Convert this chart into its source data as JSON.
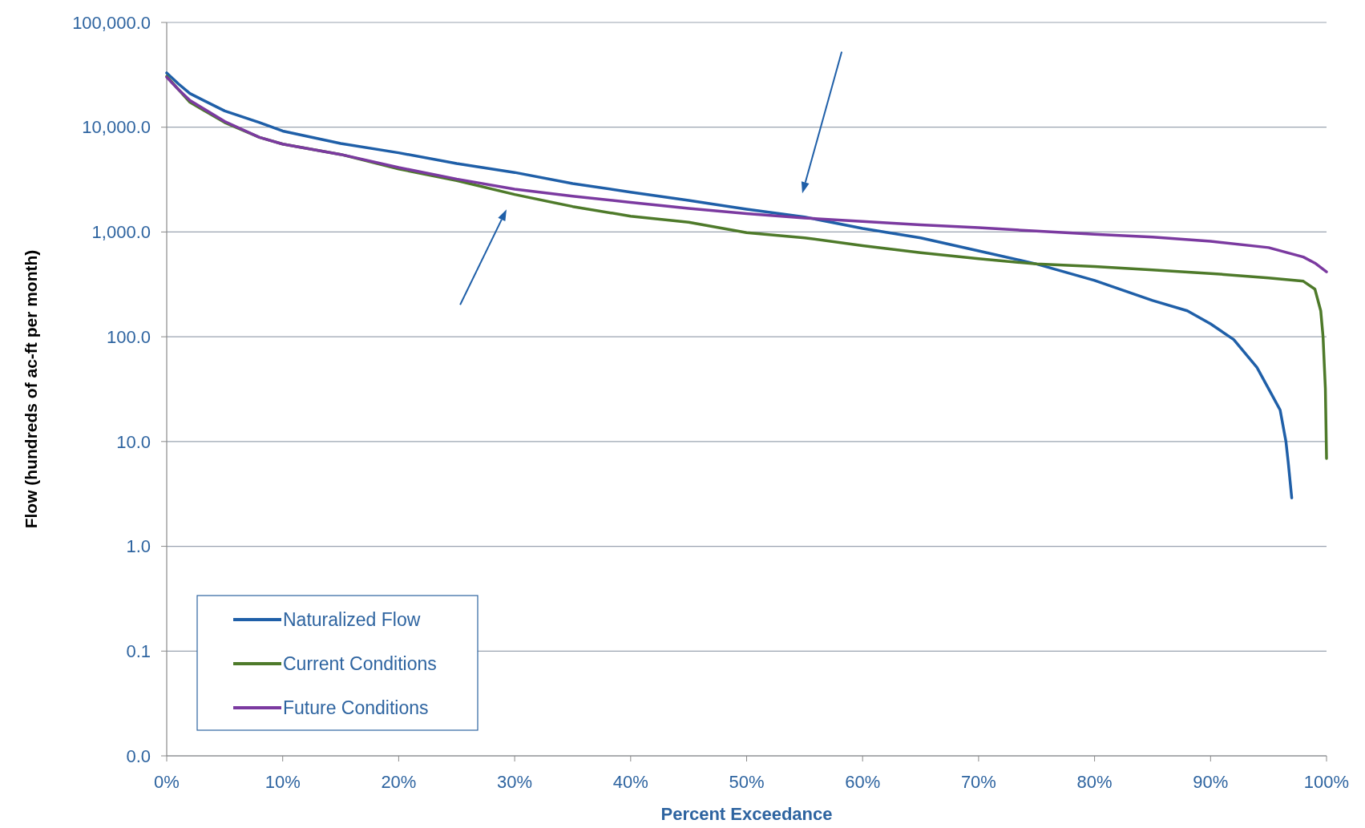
{
  "chart_data": {
    "type": "line",
    "xlabel": "Percent Exceedance",
    "ylabel": "Flow (hundreds of ac-ft per month)",
    "log": "y",
    "grid": "y",
    "legend": "bottom left",
    "marker": "none",
    "line_style": "solid",
    "xlim": [
      0,
      100
    ],
    "xticks": [
      {
        "value": 0,
        "label": "0%"
      },
      {
        "value": 10,
        "label": "10%"
      },
      {
        "value": 20,
        "label": "20%"
      },
      {
        "value": 30,
        "label": "30%"
      },
      {
        "value": 40,
        "label": "40%"
      },
      {
        "value": 50,
        "label": "50%"
      },
      {
        "value": 60,
        "label": "60%"
      },
      {
        "value": 70,
        "label": "70%"
      },
      {
        "value": 80,
        "label": "80%"
      },
      {
        "value": 90,
        "label": "90%"
      },
      {
        "value": 100,
        "label": "100%"
      }
    ],
    "ylim": [
      0.01,
      100000
    ],
    "yticks": [
      {
        "value": 0.01,
        "label": "0.0"
      },
      {
        "value": 0.1,
        "label": "0.1"
      },
      {
        "value": 1,
        "label": "1.0"
      },
      {
        "value": 10,
        "label": "10.0"
      },
      {
        "value": 100,
        "label": "100.0"
      },
      {
        "value": 1000,
        "label": "1,000.0"
      },
      {
        "value": 10000,
        "label": "10,000.0"
      },
      {
        "value": 100000,
        "label": "100,000.0"
      }
    ],
    "series": [
      {
        "name": "Naturalized Flow",
        "color": "#1f5fa8",
        "x": [
          0,
          1,
          2,
          5,
          8,
          10,
          15,
          20,
          25,
          30,
          35,
          40,
          45,
          50,
          55,
          60,
          65,
          70,
          75,
          80,
          85,
          88,
          90,
          92,
          94,
          95,
          96,
          96.5,
          96.7,
          97
        ],
        "values": [
          33000,
          26000,
          21000,
          14300,
          11100,
          9200,
          7000,
          5700,
          4500,
          3700,
          2900,
          2400,
          2000,
          1650,
          1390,
          1080,
          880,
          660,
          495,
          345,
          222,
          177,
          133,
          94,
          51,
          32,
          20,
          10,
          6.3,
          2.9
        ]
      },
      {
        "name": "Current Conditions",
        "color": "#4e7a2a",
        "x": [
          0,
          2,
          5,
          8,
          10,
          15,
          20,
          25,
          30,
          35,
          40,
          45,
          50,
          55,
          60,
          65,
          70,
          75,
          80,
          85,
          90,
          95,
          98,
          99,
          99.5,
          99.7,
          99.9,
          100
        ],
        "values": [
          30600,
          17300,
          11100,
          8000,
          6900,
          5500,
          4000,
          3100,
          2280,
          1750,
          1415,
          1240,
          985,
          880,
          740,
          635,
          556,
          495,
          468,
          434,
          402,
          365,
          339,
          285,
          177,
          100,
          32,
          6.9
        ]
      },
      {
        "name": "Future Conditions",
        "color": "#7b3aa0",
        "x": [
          0,
          1,
          2,
          5,
          8,
          10,
          15,
          20,
          25,
          30,
          35,
          40,
          45,
          50,
          55,
          60,
          65,
          70,
          75,
          80,
          85,
          90,
          95,
          98,
          99,
          100
        ],
        "values": [
          30000,
          23000,
          18000,
          11350,
          8000,
          6900,
          5500,
          4120,
          3200,
          2560,
          2200,
          1920,
          1680,
          1500,
          1360,
          1260,
          1170,
          1100,
          1020,
          950,
          895,
          815,
          710,
          577,
          505,
          417
        ]
      }
    ]
  }
}
